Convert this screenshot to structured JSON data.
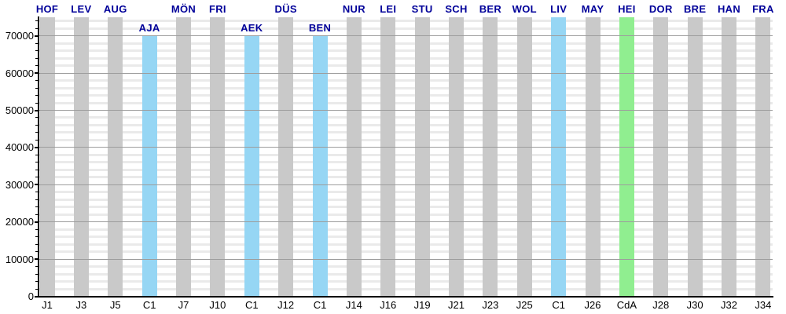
{
  "chart_data": {
    "type": "bar",
    "title": "",
    "xlabel": "",
    "ylabel": "",
    "ylim": [
      0,
      75000
    ],
    "grid": true,
    "legend_position": "none",
    "y_minor_step": 2000,
    "y_major_ticks": [
      0,
      10000,
      20000,
      30000,
      40000,
      50000,
      60000,
      70000
    ],
    "y_tick_labels": [
      "0",
      "10000",
      "20000",
      "30000",
      "40000",
      "50000",
      "60000",
      "70000"
    ],
    "bars": [
      {
        "x_label": "J1",
        "top_label": "HOF",
        "value": 75000,
        "type": "league"
      },
      {
        "x_label": "J3",
        "top_label": "LEV",
        "value": 75000,
        "type": "league"
      },
      {
        "x_label": "J5",
        "top_label": "AUG",
        "value": 75000,
        "type": "league"
      },
      {
        "x_label": "C1",
        "top_label": "AJA",
        "value": 70000,
        "type": "champions_league"
      },
      {
        "x_label": "J7",
        "top_label": "MÖN",
        "value": 75000,
        "type": "league"
      },
      {
        "x_label": "J10",
        "top_label": "FRI",
        "value": 75000,
        "type": "league"
      },
      {
        "x_label": "C1",
        "top_label": "AEK",
        "value": 70000,
        "type": "champions_league"
      },
      {
        "x_label": "J12",
        "top_label": "DÜS",
        "value": 75000,
        "type": "league"
      },
      {
        "x_label": "C1",
        "top_label": "BEN",
        "value": 70000,
        "type": "champions_league"
      },
      {
        "x_label": "J14",
        "top_label": "NUR",
        "value": 75000,
        "type": "league"
      },
      {
        "x_label": "J16",
        "top_label": "LEI",
        "value": 75000,
        "type": "league"
      },
      {
        "x_label": "J19",
        "top_label": "STU",
        "value": 75000,
        "type": "league"
      },
      {
        "x_label": "J21",
        "top_label": "SCH",
        "value": 75000,
        "type": "league"
      },
      {
        "x_label": "J23",
        "top_label": "BER",
        "value": 75000,
        "type": "league"
      },
      {
        "x_label": "J25",
        "top_label": "WOL",
        "value": 75000,
        "type": "league"
      },
      {
        "x_label": "C1",
        "top_label": "LIV",
        "value": 75000,
        "type": "champions_league"
      },
      {
        "x_label": "J26",
        "top_label": "MAY",
        "value": 75000,
        "type": "league"
      },
      {
        "x_label": "CdA",
        "top_label": "HEI",
        "value": 75000,
        "type": "cup"
      },
      {
        "x_label": "J28",
        "top_label": "DOR",
        "value": 75000,
        "type": "league"
      },
      {
        "x_label": "J30",
        "top_label": "BRE",
        "value": 75000,
        "type": "league"
      },
      {
        "x_label": "J32",
        "top_label": "HAN",
        "value": 75000,
        "type": "league"
      },
      {
        "x_label": "J34",
        "top_label": "FRA",
        "value": 75000,
        "type": "league"
      }
    ],
    "colors": {
      "league": "#c9c9c9",
      "champions_league": "#96d6f4",
      "cup": "#90ee90",
      "top_label_text": "#000099",
      "bottom_label_text": "#000000",
      "axis": "#000000",
      "grid_major": "#9d9d9d",
      "grid_minor": "#eaeaea"
    }
  }
}
